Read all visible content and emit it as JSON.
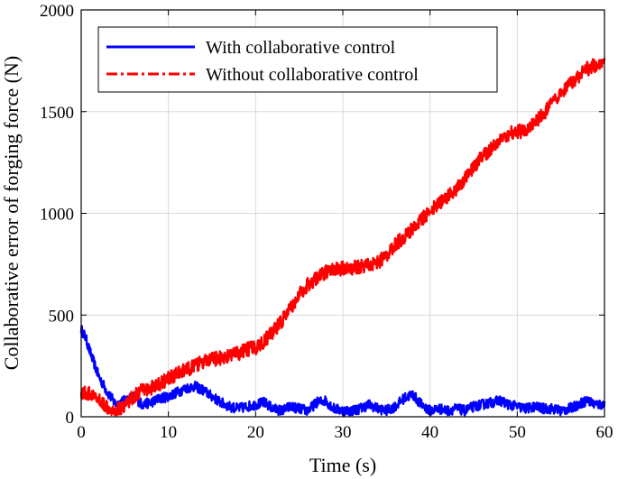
{
  "chart_data": {
    "type": "line",
    "title": "",
    "xlabel": "Time (s)",
    "ylabel": "Collaborative error of forging force (N)",
    "xlim": [
      0,
      60
    ],
    "ylim": [
      0,
      2000
    ],
    "xticks": [
      0,
      10,
      20,
      30,
      40,
      50,
      60
    ],
    "yticks": [
      0,
      500,
      1000,
      1500,
      2000
    ],
    "grid": true,
    "legend_position": "top-left",
    "series": [
      {
        "name": "With collaborative control",
        "color": "#0000ff",
        "style": "solid",
        "noise": 25,
        "x": [
          0,
          0.5,
          1,
          2,
          3,
          4,
          5,
          6,
          7,
          8,
          9,
          10,
          11,
          12,
          13,
          14,
          15,
          16,
          17,
          18,
          19,
          20,
          21,
          22,
          23,
          24,
          25,
          26,
          27,
          28,
          29,
          30,
          31,
          32,
          33,
          34,
          35,
          36,
          37,
          38,
          39,
          40,
          41,
          42,
          43,
          44,
          45,
          46,
          47,
          48,
          49,
          50,
          51,
          52,
          53,
          54,
          55,
          56,
          57,
          58,
          59,
          60
        ],
        "y": [
          430,
          390,
          320,
          200,
          120,
          60,
          80,
          100,
          60,
          70,
          90,
          100,
          120,
          140,
          150,
          130,
          100,
          70,
          50,
          40,
          50,
          60,
          70,
          40,
          30,
          50,
          40,
          30,
          70,
          80,
          40,
          30,
          30,
          40,
          60,
          40,
          30,
          50,
          90,
          110,
          60,
          30,
          40,
          30,
          40,
          30,
          50,
          60,
          70,
          80,
          60,
          50,
          40,
          50,
          40,
          40,
          30,
          40,
          60,
          80,
          60,
          60
        ]
      },
      {
        "name": "Without collaborative control",
        "color": "#ff0000",
        "style": "dash-dot",
        "noise": 35,
        "x": [
          0,
          1,
          2,
          3,
          4,
          5,
          6,
          7,
          8,
          9,
          10,
          11,
          12,
          13,
          14,
          15,
          16,
          17,
          18,
          19,
          20,
          21,
          22,
          23,
          24,
          25,
          26,
          27,
          28,
          29,
          30,
          31,
          32,
          33,
          34,
          35,
          36,
          37,
          38,
          39,
          40,
          41,
          42,
          43,
          44,
          45,
          46,
          47,
          48,
          49,
          50,
          51,
          52,
          53,
          54,
          55,
          56,
          57,
          58,
          59,
          60
        ],
        "y": [
          120,
          110,
          80,
          50,
          30,
          60,
          100,
          130,
          140,
          160,
          190,
          210,
          230,
          250,
          270,
          280,
          290,
          300,
          310,
          330,
          340,
          370,
          420,
          470,
          530,
          600,
          650,
          680,
          710,
          720,
          730,
          730,
          740,
          750,
          760,
          790,
          850,
          880,
          930,
          970,
          1010,
          1050,
          1080,
          1120,
          1170,
          1220,
          1280,
          1320,
          1360,
          1390,
          1400,
          1410,
          1440,
          1490,
          1540,
          1580,
          1630,
          1670,
          1710,
          1730,
          1760
        ]
      }
    ]
  }
}
